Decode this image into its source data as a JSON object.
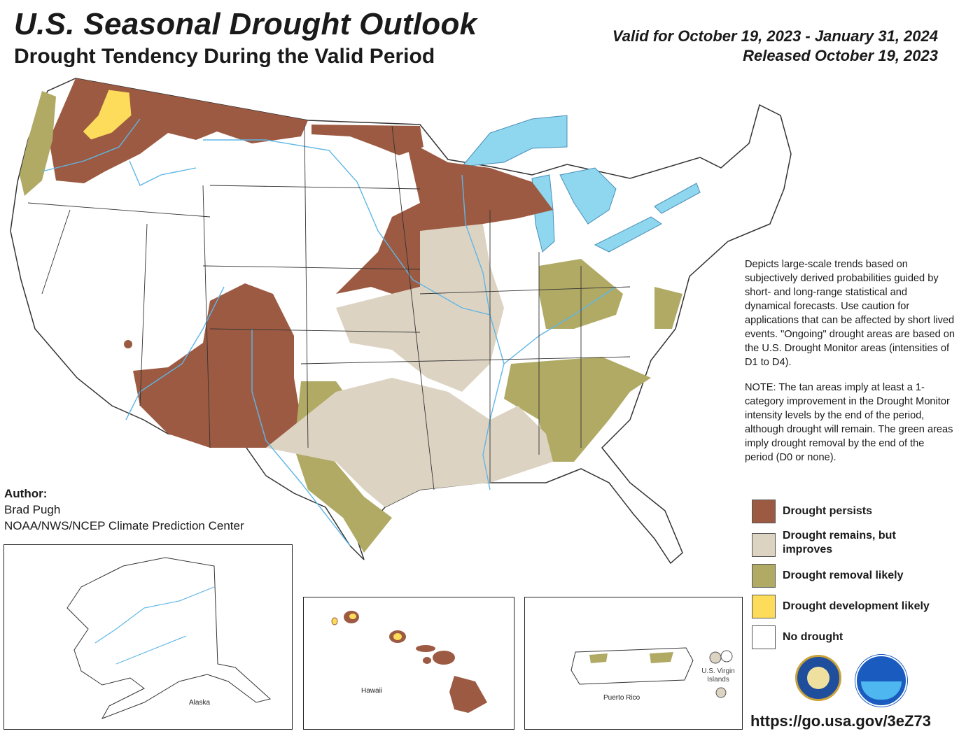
{
  "header": {
    "title": "U.S. Seasonal Drought Outlook",
    "subtitle": "Drought Tendency During the Valid Period",
    "valid_line": "Valid for October 19, 2023 - January 31, 2024",
    "released_line": "Released October 19, 2023"
  },
  "description": {
    "para1": "Depicts large-scale trends based on subjectively derived probabilities guided by short- and long-range statistical and dynamical forecasts. Use caution for applications that can be affected by short lived events. \"Ongoing\" drought areas are based on the U.S. Drought Monitor areas (intensities of D1 to D4).",
    "para2": "NOTE: The tan areas imply at least a 1-category improvement in the Drought Monitor intensity levels by the end of the period, although drought will remain. The green areas imply drought removal by the end of the period (D0 or none)."
  },
  "legend": {
    "items": [
      {
        "label": "Drought persists",
        "color": "#9c5a42"
      },
      {
        "label": "Drought remains, but improves",
        "color": "#ddd3c2"
      },
      {
        "label": "Drought removal likely",
        "color": "#b0aa65"
      },
      {
        "label": "Drought development likely",
        "color": "#fcdc5a"
      },
      {
        "label": "No drought",
        "color": "#ffffff"
      }
    ]
  },
  "author": {
    "heading": "Author:",
    "name": "Brad Pugh",
    "org": "NOAA/NWS/NCEP Climate Prediction Center"
  },
  "insets": {
    "alaska": "Alaska",
    "hawaii": "Hawaii",
    "puerto_rico": "Puerto Rico",
    "vi_line1": "U.S. Virgin",
    "vi_line2": "Islands"
  },
  "footer": {
    "url": "https://go.usa.gov/3eZ73"
  },
  "colors": {
    "water": "#8fd6ef",
    "rivers": "#5fb6e6",
    "borders": "#333333"
  },
  "icons": [
    "doc-seal-icon",
    "noaa-logo-icon"
  ]
}
